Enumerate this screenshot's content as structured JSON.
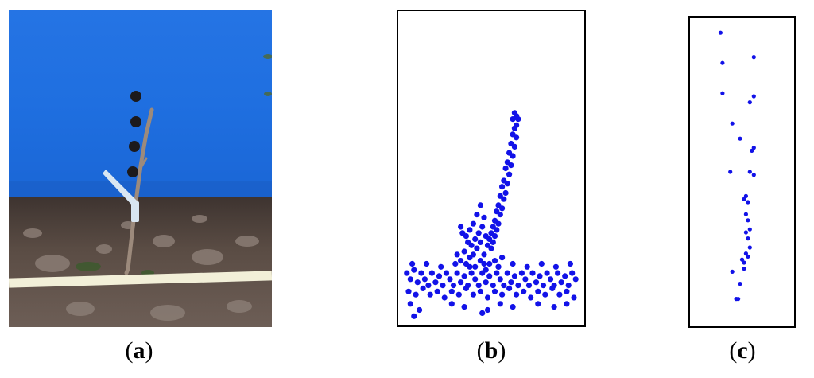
{
  "figure": {
    "panels": [
      {
        "id": "a",
        "caption_letter": "a",
        "content": "photo"
      },
      {
        "id": "b",
        "caption_letter": "b",
        "content": "point-cloud"
      },
      {
        "id": "c",
        "caption_letter": "c",
        "content": "point-cloud"
      }
    ]
  },
  "colors": {
    "points": "#1212e8",
    "backdrop_blue": "#1f6fe0",
    "soil": "#5a4a40",
    "tape": "#f2efd8",
    "stem": "#9c8a7c",
    "hole": "#1c1a1c"
  },
  "chart_data": [
    {
      "type": "scatter",
      "panel": "b",
      "xlim": [
        0,
        100
      ],
      "ylim": [
        0,
        100
      ],
      "grid": false,
      "points": [
        [
          63,
          68
        ],
        [
          64,
          67
        ],
        [
          65,
          66
        ],
        [
          62,
          66
        ],
        [
          64,
          64
        ],
        [
          63,
          63
        ],
        [
          62,
          61
        ],
        [
          64,
          60
        ],
        [
          61,
          58
        ],
        [
          63,
          57
        ],
        [
          60,
          55
        ],
        [
          62,
          54
        ],
        [
          59,
          52
        ],
        [
          61,
          51
        ],
        [
          58,
          50
        ],
        [
          60,
          48
        ],
        [
          57,
          46
        ],
        [
          59,
          45
        ],
        [
          56,
          44
        ],
        [
          58,
          42
        ],
        [
          55,
          41
        ],
        [
          57,
          40
        ],
        [
          54,
          38
        ],
        [
          56,
          37
        ],
        [
          53,
          36
        ],
        [
          55,
          35
        ],
        [
          52,
          33
        ],
        [
          54,
          32
        ],
        [
          51,
          31
        ],
        [
          53,
          30
        ],
        [
          50,
          29
        ],
        [
          52,
          28
        ],
        [
          49,
          27
        ],
        [
          51,
          26
        ],
        [
          48,
          25
        ],
        [
          50,
          24
        ],
        [
          44,
          38
        ],
        [
          42,
          35
        ],
        [
          46,
          34
        ],
        [
          40,
          32
        ],
        [
          45,
          31
        ],
        [
          38,
          30
        ],
        [
          43,
          29
        ],
        [
          47,
          28
        ],
        [
          36,
          28
        ],
        [
          41,
          27
        ],
        [
          44,
          26
        ],
        [
          39,
          25
        ],
        [
          33,
          31
        ],
        [
          34,
          29
        ],
        [
          37,
          26
        ],
        [
          42,
          24
        ],
        [
          35,
          23
        ],
        [
          40,
          22
        ],
        [
          46,
          22
        ],
        [
          38,
          21
        ],
        [
          44,
          20
        ],
        [
          52,
          20
        ],
        [
          36,
          19
        ],
        [
          49,
          19
        ],
        [
          41,
          18
        ],
        [
          54,
          18
        ],
        [
          33,
          20
        ],
        [
          47,
          17
        ],
        [
          31,
          22
        ],
        [
          56,
          21
        ],
        [
          3,
          16
        ],
        [
          5,
          14
        ],
        [
          7,
          17
        ],
        [
          9,
          13
        ],
        [
          11,
          16
        ],
        [
          13,
          14
        ],
        [
          15,
          12
        ],
        [
          17,
          16
        ],
        [
          19,
          13
        ],
        [
          21,
          15
        ],
        [
          23,
          12
        ],
        [
          25,
          16
        ],
        [
          27,
          14
        ],
        [
          29,
          12
        ],
        [
          31,
          16
        ],
        [
          33,
          13
        ],
        [
          35,
          15
        ],
        [
          37,
          12
        ],
        [
          39,
          16
        ],
        [
          41,
          14
        ],
        [
          43,
          12
        ],
        [
          45,
          16
        ],
        [
          47,
          13
        ],
        [
          49,
          15
        ],
        [
          51,
          12
        ],
        [
          53,
          16
        ],
        [
          55,
          14
        ],
        [
          57,
          12
        ],
        [
          59,
          16
        ],
        [
          61,
          13
        ],
        [
          63,
          15
        ],
        [
          65,
          12
        ],
        [
          67,
          16
        ],
        [
          69,
          14
        ],
        [
          71,
          12
        ],
        [
          73,
          16
        ],
        [
          75,
          13
        ],
        [
          77,
          15
        ],
        [
          79,
          12
        ],
        [
          81,
          16
        ],
        [
          83,
          14
        ],
        [
          85,
          12
        ],
        [
          87,
          16
        ],
        [
          89,
          13
        ],
        [
          91,
          15
        ],
        [
          93,
          12
        ],
        [
          95,
          16
        ],
        [
          97,
          14
        ],
        [
          4,
          10
        ],
        [
          8,
          9
        ],
        [
          12,
          11
        ],
        [
          16,
          9
        ],
        [
          20,
          10
        ],
        [
          24,
          8
        ],
        [
          28,
          10
        ],
        [
          32,
          9
        ],
        [
          36,
          11
        ],
        [
          40,
          9
        ],
        [
          44,
          10
        ],
        [
          48,
          8
        ],
        [
          52,
          10
        ],
        [
          56,
          9
        ],
        [
          60,
          11
        ],
        [
          64,
          9
        ],
        [
          68,
          10
        ],
        [
          72,
          8
        ],
        [
          76,
          10
        ],
        [
          80,
          9
        ],
        [
          84,
          11
        ],
        [
          88,
          9
        ],
        [
          92,
          10
        ],
        [
          96,
          8
        ],
        [
          6,
          19
        ],
        [
          14,
          19
        ],
        [
          22,
          18
        ],
        [
          30,
          19
        ],
        [
          38,
          18
        ],
        [
          46,
          19
        ],
        [
          54,
          18
        ],
        [
          62,
          19
        ],
        [
          70,
          18
        ],
        [
          78,
          19
        ],
        [
          86,
          18
        ],
        [
          94,
          19
        ],
        [
          5,
          6
        ],
        [
          10,
          4
        ],
        [
          28,
          6
        ],
        [
          35,
          5
        ],
        [
          48,
          4
        ],
        [
          55,
          6
        ],
        [
          62,
          5
        ],
        [
          76,
          6
        ],
        [
          85,
          5
        ],
        [
          92,
          6
        ],
        [
          7,
          2
        ],
        [
          45,
          3
        ]
      ]
    },
    {
      "type": "scatter",
      "panel": "c",
      "xlim": [
        0,
        100
      ],
      "ylim": [
        0,
        100
      ],
      "grid": false,
      "points": [
        [
          28,
          96
        ],
        [
          30,
          86
        ],
        [
          62,
          88
        ],
        [
          30,
          76
        ],
        [
          58,
          73
        ],
        [
          62,
          75
        ],
        [
          40,
          66
        ],
        [
          48,
          61
        ],
        [
          60,
          57
        ],
        [
          62,
          58
        ],
        [
          38,
          50
        ],
        [
          58,
          50
        ],
        [
          62,
          49
        ],
        [
          54,
          42
        ],
        [
          52,
          41
        ],
        [
          56,
          40
        ],
        [
          54,
          36
        ],
        [
          56,
          34
        ],
        [
          58,
          31
        ],
        [
          54,
          30
        ],
        [
          56,
          28
        ],
        [
          58,
          25
        ],
        [
          54,
          23
        ],
        [
          50,
          21
        ],
        [
          52,
          20
        ],
        [
          56,
          22
        ],
        [
          40,
          17
        ],
        [
          52,
          18
        ],
        [
          48,
          13
        ],
        [
          46,
          8
        ],
        [
          44,
          8
        ]
      ]
    }
  ]
}
